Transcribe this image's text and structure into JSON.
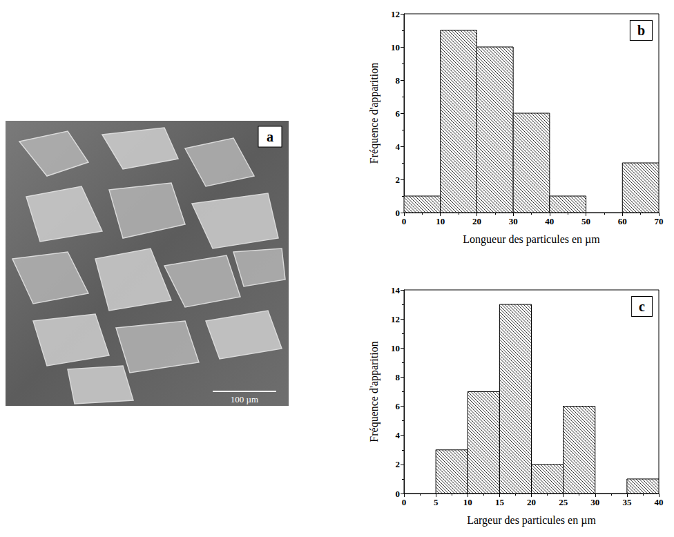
{
  "image_panel": {
    "panel": "a",
    "scale_bar": "100 µm"
  },
  "chart_data": [
    {
      "type": "histogram",
      "panel": "b",
      "color": "#000000",
      "x_label": "Longueur des particules en µm",
      "y_label": "Fréquence d'apparition",
      "bins": [
        0,
        10,
        20,
        30,
        40,
        50,
        60,
        70
      ],
      "values": [
        1,
        11,
        10,
        6,
        1,
        0,
        3
      ],
      "xlim": [
        0,
        70
      ],
      "xticks": [
        0,
        10,
        20,
        30,
        40,
        50,
        60,
        70
      ],
      "ylim": [
        0,
        12
      ],
      "yticks": [
        0,
        2,
        4,
        6,
        8,
        10,
        12
      ],
      "grid": false
    },
    {
      "type": "histogram",
      "panel": "c",
      "color": "#000000",
      "x_label": "Largeur des particules en µm",
      "y_label": "Fréquence d'apparition",
      "bins": [
        0,
        5,
        10,
        15,
        20,
        25,
        30,
        35,
        40
      ],
      "values": [
        0,
        3,
        7,
        13,
        2,
        6,
        0,
        1
      ],
      "xlim": [
        0,
        40
      ],
      "xticks": [
        0,
        5,
        10,
        15,
        20,
        25,
        30,
        35,
        40
      ],
      "ylim": [
        0,
        14
      ],
      "yticks": [
        0,
        2,
        4,
        6,
        8,
        10,
        12,
        14
      ],
      "grid": false
    }
  ]
}
